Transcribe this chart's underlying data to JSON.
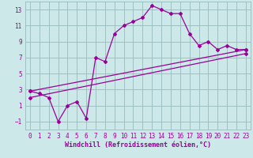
{
  "xlabel": "Windchill (Refroidissement éolien,°C)",
  "line1_x": [
    0,
    1,
    2,
    3,
    4,
    5,
    6,
    7,
    8,
    9,
    10,
    11,
    12,
    13,
    14,
    15,
    16,
    17,
    18,
    19,
    20,
    21,
    22,
    23
  ],
  "line1_y": [
    2.8,
    2.5,
    2.0,
    -1.0,
    1.0,
    1.5,
    -0.6,
    7.0,
    6.5,
    10.0,
    11.0,
    11.5,
    12.0,
    13.5,
    13.0,
    12.5,
    12.5,
    10.0,
    8.5,
    9.0,
    8.0,
    8.5,
    8.0,
    8.0
  ],
  "line2_x": [
    0,
    23
  ],
  "line2_y": [
    2.8,
    8.0
  ],
  "line3_x": [
    0,
    23
  ],
  "line3_y": [
    2.0,
    7.5
  ],
  "line_color": "#990099",
  "bg_color": "#cce8e8",
  "grid_color": "#99bbbb",
  "ylim": [
    -2.0,
    14.0
  ],
  "xlim": [
    -0.5,
    23.5
  ],
  "yticks": [
    -1,
    1,
    3,
    5,
    7,
    9,
    11,
    13
  ],
  "xticks": [
    0,
    1,
    2,
    3,
    4,
    5,
    6,
    7,
    8,
    9,
    10,
    11,
    12,
    13,
    14,
    15,
    16,
    17,
    18,
    19,
    20,
    21,
    22,
    23
  ],
  "marker": "D",
  "markersize": 2.0,
  "linewidth": 0.9,
  "tick_fontsize": 5.5,
  "xlabel_fontsize": 6.0
}
